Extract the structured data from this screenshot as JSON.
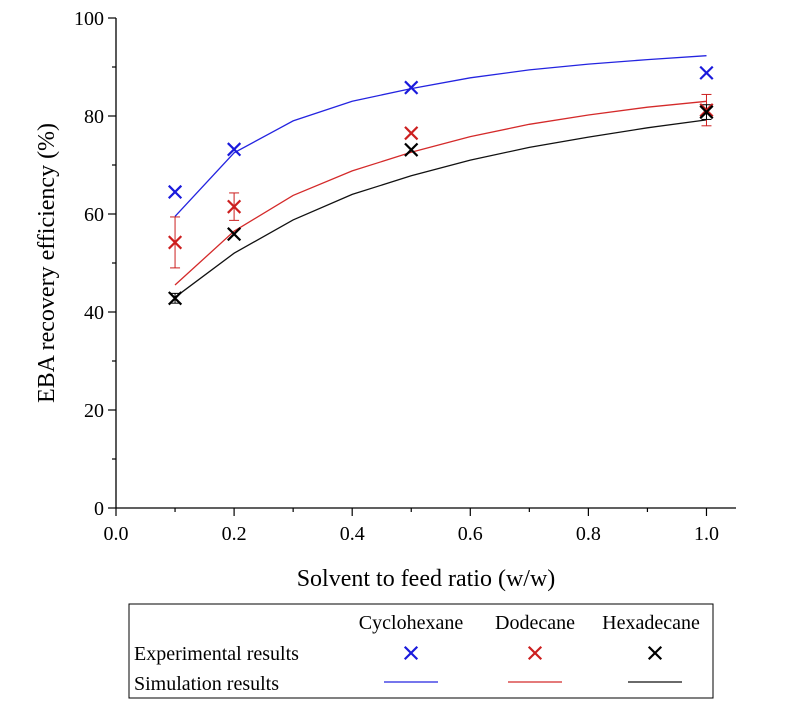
{
  "chart_data": {
    "type": "scatter",
    "xlabel": "Solvent to feed ratio (w/w)",
    "ylabel": "EBA recovery efficiency (%)",
    "xlim": [
      0.0,
      1.05
    ],
    "ylim": [
      0,
      100
    ],
    "x_ticks": [
      "0.0",
      "0.2",
      "0.4",
      "0.6",
      "0.8",
      "1.0"
    ],
    "x_tick_values": [
      0.0,
      0.2,
      0.4,
      0.6,
      0.8,
      1.0
    ],
    "y_ticks": [
      "0",
      "20",
      "40",
      "60",
      "80",
      "100"
    ],
    "y_tick_values": [
      0,
      20,
      40,
      60,
      80,
      100
    ],
    "grid": false,
    "experimental": [
      {
        "name": "Cyclohexane",
        "color": "#1a1adc",
        "x": [
          0.1,
          0.2,
          0.5,
          1.0
        ],
        "y": [
          64.5,
          73.2,
          85.8,
          88.8
        ],
        "err": [
          0,
          0,
          0,
          0
        ]
      },
      {
        "name": "Dodecane",
        "color": "#cc1f1f",
        "x": [
          0.1,
          0.2,
          0.5,
          1.0
        ],
        "y": [
          54.2,
          61.5,
          76.5,
          81.2
        ],
        "err": [
          5.2,
          2.8,
          0,
          3.2
        ]
      },
      {
        "name": "Hexadecane",
        "color": "#000000",
        "x": [
          0.1,
          0.2,
          0.5,
          1.0
        ],
        "y": [
          42.8,
          55.9,
          73.1,
          80.8
        ],
        "err": [
          1.0,
          0,
          0,
          1.5
        ]
      }
    ],
    "simulation": [
      {
        "name": "Cyclohexane",
        "color": "#2424e0",
        "x": [
          0.1,
          0.2,
          0.3,
          0.4,
          0.5,
          0.6,
          0.7,
          0.8,
          0.9,
          1.0
        ],
        "y": [
          59.5,
          72.5,
          79.0,
          83.0,
          85.6,
          87.8,
          89.4,
          90.6,
          91.5,
          92.3
        ]
      },
      {
        "name": "Dodecane",
        "color": "#d42a2a",
        "x": [
          0.1,
          0.2,
          0.3,
          0.4,
          0.5,
          0.6,
          0.7,
          0.8,
          0.9,
          1.0
        ],
        "y": [
          45.5,
          56.5,
          63.8,
          68.8,
          72.6,
          75.8,
          78.3,
          80.2,
          81.8,
          83.0
        ]
      },
      {
        "name": "Hexadecane",
        "color": "#111111",
        "x": [
          0.1,
          0.2,
          0.3,
          0.4,
          0.5,
          0.6,
          0.7,
          0.8,
          0.9,
          1.0
        ],
        "y": [
          43.0,
          52.0,
          58.8,
          64.0,
          67.8,
          71.0,
          73.6,
          75.7,
          77.6,
          79.2
        ]
      }
    ],
    "legend": {
      "placement": "bottom",
      "columns": [
        "Cyclohexane",
        "Dodecane",
        "Hexadecane"
      ],
      "rows": [
        "Experimental results",
        "Simulation results"
      ]
    }
  }
}
